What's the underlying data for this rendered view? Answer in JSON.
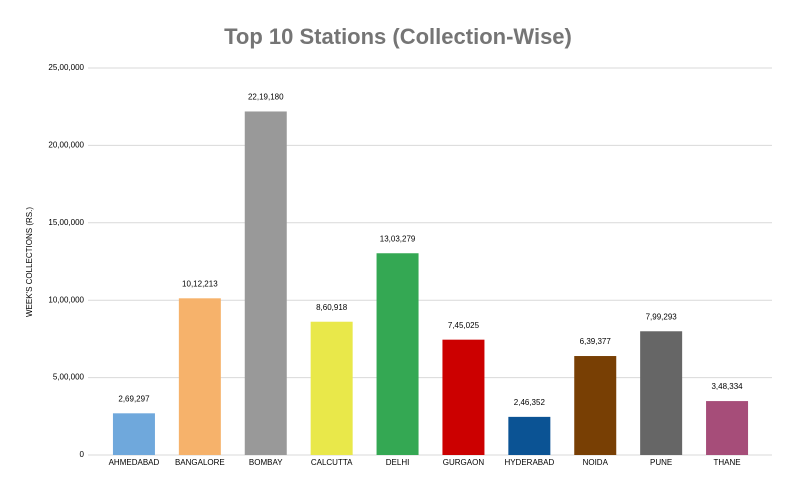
{
  "chart_data": {
    "type": "bar",
    "title": "Top 10 Stations (Collection-Wise)",
    "y_label": "WEEK'S COLLECTIONS (RS.)",
    "categories": [
      "AHMEDABAD",
      "BANGALORE",
      "BOMBAY",
      "CALCUTTA",
      "DELHI",
      "GURGAON",
      "HYDERABAD",
      "NOIDA",
      "PUNE",
      "THANE"
    ],
    "values": [
      269297,
      1012213,
      2219180,
      860918,
      1303279,
      745025,
      246352,
      639377,
      799293,
      348334
    ],
    "value_labels": [
      "2,69,297",
      "10,12,213",
      "22,19,180",
      "8,60,918",
      "13,03,279",
      "7,45,025",
      "2,46,352",
      "6,39,377",
      "7,99,293",
      "3,48,334"
    ],
    "colors": [
      "#6fa8dc",
      "#f6b26b",
      "#999999",
      "#e9e84a",
      "#34a853",
      "#cc0000",
      "#0b5394",
      "#783f04",
      "#666666",
      "#a64d79"
    ],
    "ylim": [
      0,
      2500000
    ],
    "yticks": [
      0,
      {
        "value": 500000,
        "label": "5,00,000"
      },
      {
        "value": 1000000,
        "label": "10,00,000"
      },
      {
        "value": 1500000,
        "label": "15,00,000"
      },
      {
        "value": 2000000,
        "label": "20,00,000"
      },
      {
        "value": 2500000,
        "label": "25,00,000"
      }
    ],
    "grid": true
  }
}
